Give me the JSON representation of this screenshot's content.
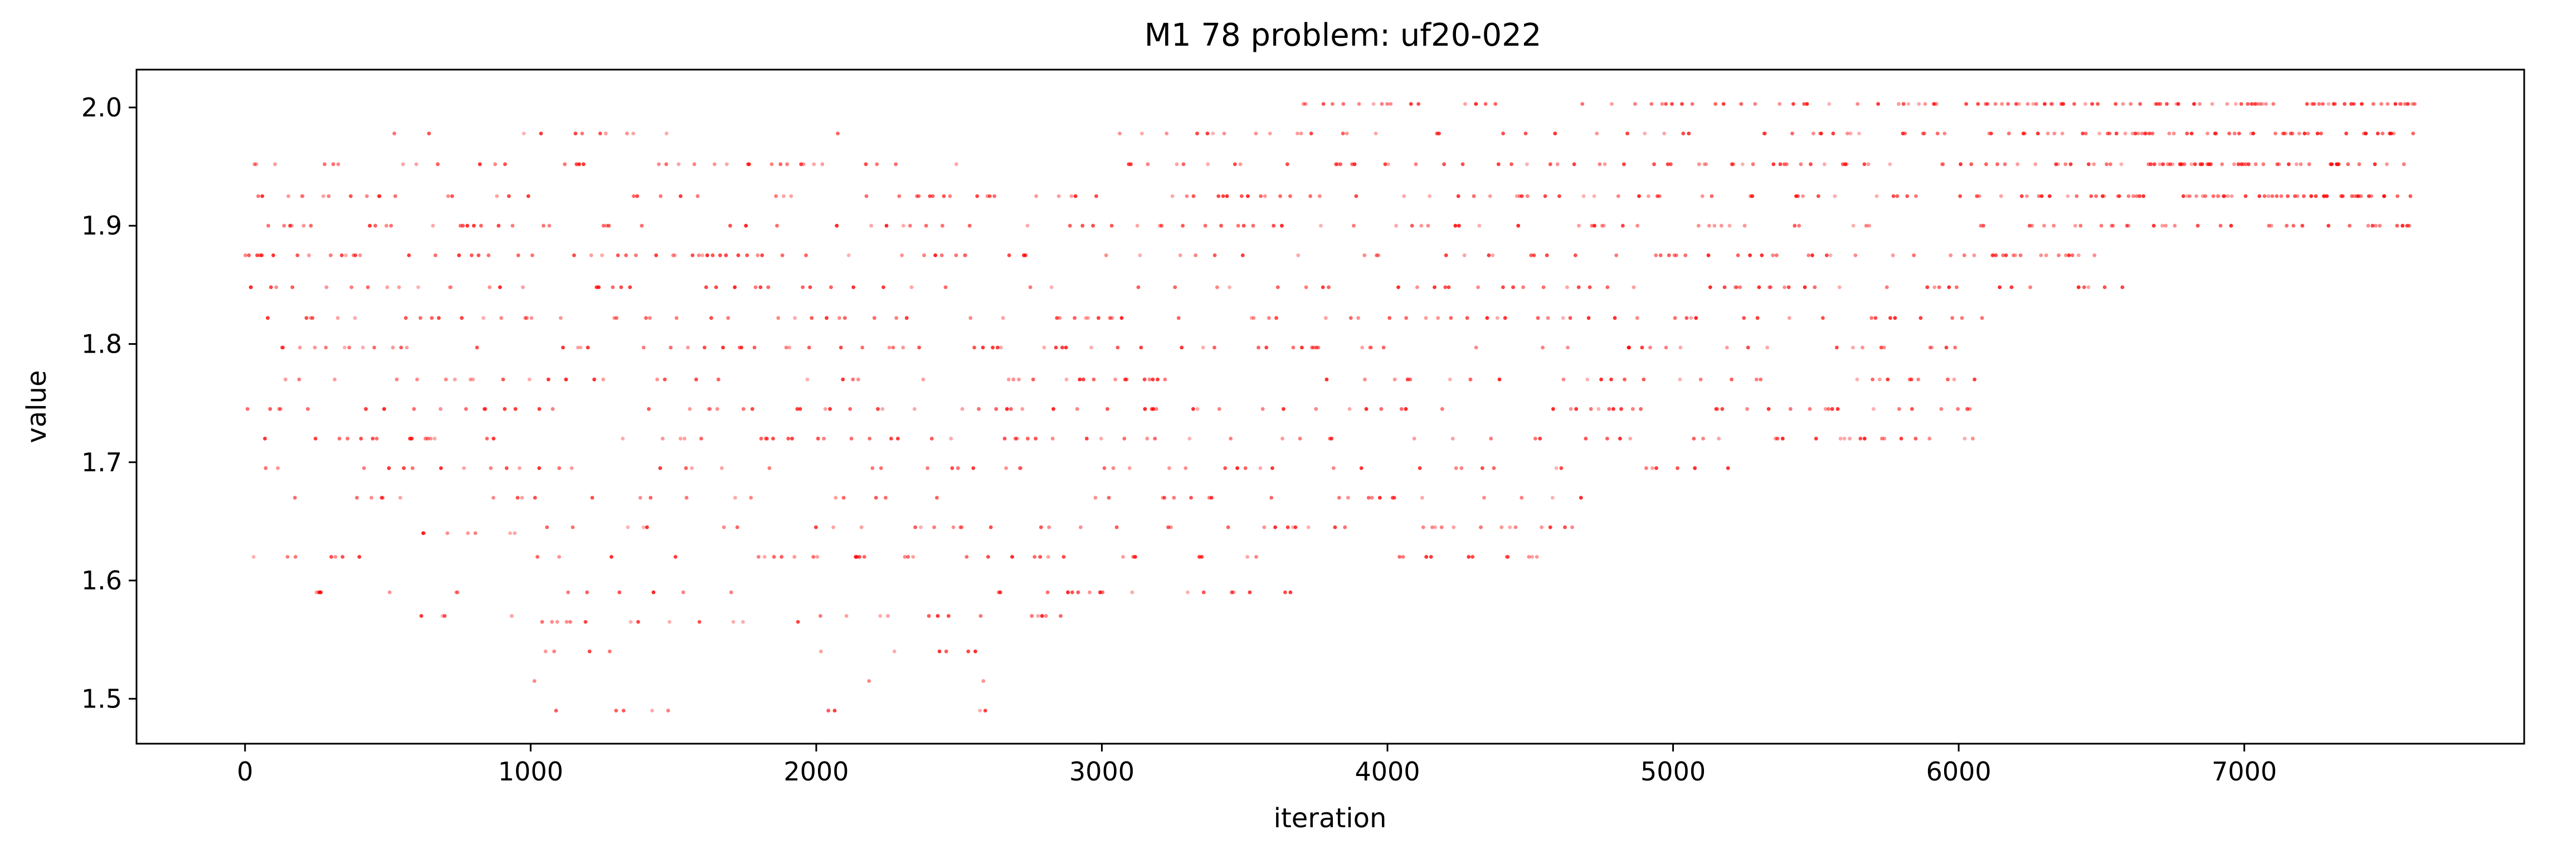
{
  "colors": {
    "marker": "#ff0000",
    "axis": "#000000",
    "background": "#ffffff"
  },
  "chart_data": {
    "type": "scatter",
    "title": "M1 78 problem: uf20-022",
    "xlabel": "iteration",
    "ylabel": "value",
    "xlim": [
      -380,
      7980
    ],
    "ylim": [
      1.462,
      2.032
    ],
    "xticks": [
      0,
      1000,
      2000,
      3000,
      4000,
      5000,
      6000,
      7000
    ],
    "xtick_labels": [
      "0",
      "1000",
      "2000",
      "3000",
      "4000",
      "5000",
      "6000",
      "7000"
    ],
    "yticks": [
      1.5,
      1.6,
      1.7,
      1.8,
      1.9,
      2.0
    ],
    "ytick_labels": [
      "1.5",
      "1.6",
      "1.7",
      "1.8",
      "1.9",
      "2.0"
    ],
    "grid": false,
    "marker_color": "#ff0000",
    "series": [
      {
        "point_spacing": 5,
        "segments": [
          {
            "x": [
              0,
              500
            ],
            "levels": [
              1.59,
              1.62,
              1.67,
              1.695,
              1.72,
              1.745,
              1.77,
              1.797,
              1.822,
              1.848,
              1.875,
              1.9,
              1.925,
              1.952
            ]
          },
          {
            "x": [
              500,
              1000
            ],
            "levels": [
              1.57,
              1.59,
              1.64,
              1.67,
              1.695,
              1.72,
              1.745,
              1.77,
              1.797,
              1.822,
              1.848,
              1.875,
              1.9,
              1.925,
              1.952,
              1.978
            ]
          },
          {
            "x": [
              1000,
              1500
            ],
            "levels": [
              1.49,
              1.515,
              1.54,
              1.565,
              1.59,
              1.62,
              1.645,
              1.67,
              1.695,
              1.72,
              1.745,
              1.77,
              1.797,
              1.822,
              1.848,
              1.875,
              1.9,
              1.925,
              1.952,
              1.978
            ]
          },
          {
            "x": [
              1500,
              2000
            ],
            "levels": [
              1.565,
              1.59,
              1.62,
              1.645,
              1.67,
              1.695,
              1.72,
              1.745,
              1.77,
              1.797,
              1.822,
              1.848,
              1.875,
              1.9,
              1.925,
              1.952
            ]
          },
          {
            "x": [
              2000,
              2600
            ],
            "levels": [
              1.49,
              1.515,
              1.54,
              1.57,
              1.62,
              1.645,
              1.67,
              1.695,
              1.72,
              1.745,
              1.77,
              1.797,
              1.822,
              1.848,
              1.875,
              1.9,
              1.925,
              1.952,
              1.978
            ]
          },
          {
            "x": [
              2600,
              3000
            ],
            "levels": [
              1.57,
              1.59,
              1.62,
              1.645,
              1.67,
              1.695,
              1.72,
              1.745,
              1.77,
              1.797,
              1.822,
              1.848,
              1.875,
              1.9,
              1.925
            ]
          },
          {
            "x": [
              3000,
              3700
            ],
            "levels": [
              1.59,
              1.62,
              1.645,
              1.67,
              1.695,
              1.72,
              1.745,
              1.77,
              1.797,
              1.822,
              1.848,
              1.875,
              1.9,
              1.925,
              1.952,
              1.978
            ]
          },
          {
            "x": [
              3700,
              4700
            ],
            "levels": [
              1.62,
              1.645,
              1.67,
              1.695,
              1.72,
              1.745,
              1.77,
              1.797,
              1.822,
              1.848,
              1.875,
              1.9,
              1.925,
              1.952,
              1.978,
              2.003
            ]
          },
          {
            "x": [
              4700,
              5200
            ],
            "levels": [
              1.695,
              1.72,
              1.745,
              1.77,
              1.797,
              1.822,
              1.848,
              1.875,
              1.9,
              1.925,
              1.952,
              1.978,
              2.003
            ]
          },
          {
            "x": [
              5200,
              6100
            ],
            "levels": [
              1.72,
              1.745,
              1.77,
              1.797,
              1.822,
              1.848,
              1.875,
              1.9,
              1.925,
              1.952,
              1.978,
              2.003
            ]
          },
          {
            "x": [
              6100,
              6600
            ],
            "levels": [
              1.848,
              1.875,
              1.9,
              1.925,
              1.952,
              1.978,
              2.003
            ]
          },
          {
            "x": [
              6600,
              7600
            ],
            "levels": [
              1.9,
              1.925,
              1.952,
              1.978,
              2.003
            ]
          }
        ]
      }
    ]
  }
}
